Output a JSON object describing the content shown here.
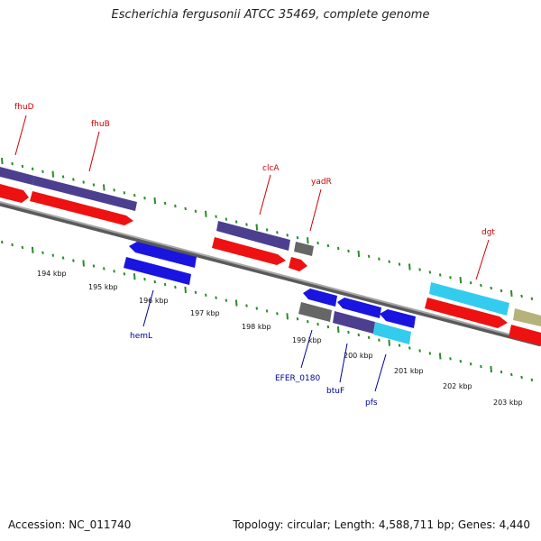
{
  "title": "Escherichia fergusonii ATCC 35469, complete genome",
  "footer": {
    "accession": "Accession: NC_011740",
    "summary": "Topology: circular; Length: 4,588,711 bp; Genes: 4,440"
  },
  "colors": {
    "backbone": "#8c8c8c",
    "cds_red": "#ee1111",
    "gene_purple": "#4d3f8f",
    "gene_blue": "#1a14e0",
    "gene_gray": "#666666",
    "gene_cyan": "#33ccee",
    "gene_khaki": "#b5b27a",
    "tick_green": "#2a8a2a"
  },
  "kbp_labels": [
    "194 kbp",
    "195 kbp",
    "196 kbp",
    "197 kbp",
    "198 kbp",
    "199 kbp",
    "200 kbp",
    "201 kbp",
    "202 kbp",
    "203 kbp"
  ],
  "top_genes": [
    {
      "label": "fhuD"
    },
    {
      "label": "fhuB"
    },
    {
      "label": "clcA"
    },
    {
      "label": "yadR"
    },
    {
      "label": "dgt"
    }
  ],
  "bottom_genes": [
    {
      "label": "hemL"
    },
    {
      "label": "EFER_0180"
    },
    {
      "label": "btuF"
    },
    {
      "label": "pfs"
    }
  ]
}
